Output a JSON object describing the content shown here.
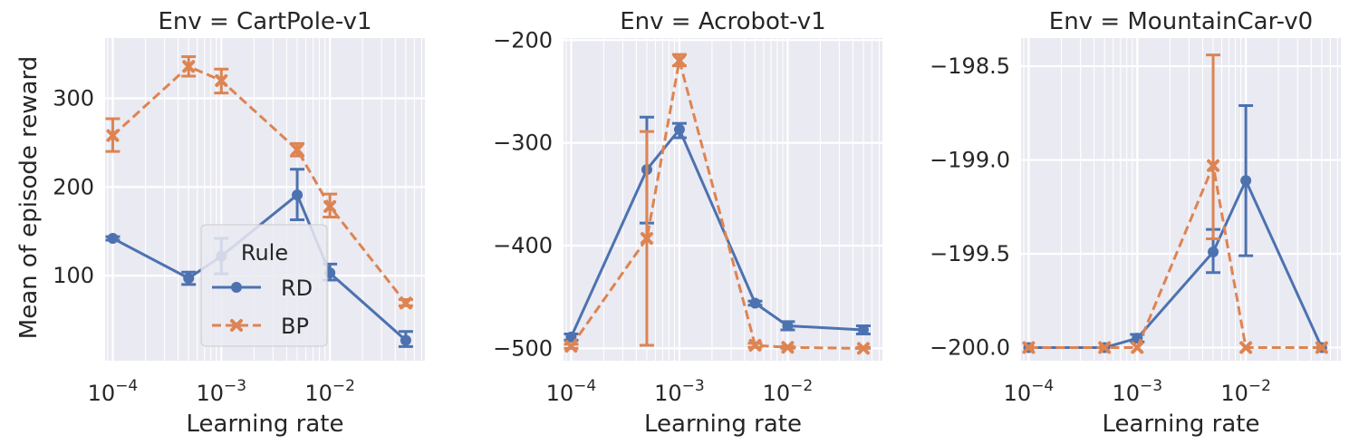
{
  "colors": {
    "RD": "#4c72b0",
    "BP": "#dd8452",
    "panel_bg": "#eaeaf2",
    "grid": "#ffffff",
    "text": "#262626"
  },
  "legend": {
    "title": "Rule",
    "placement": "lower-right",
    "panel": 0
  },
  "chart_data": [
    {
      "type": "line",
      "title": "Env = CartPole-v1",
      "xlabel": "Learning rate",
      "ylabel": "Mean of episode reward",
      "xscale": "log",
      "xlim": [
        8.5e-05,
        0.075
      ],
      "ylim": [
        4,
        368
      ],
      "yticks": [
        100,
        200,
        300
      ],
      "xticks": [
        0.0001,
        0.001,
        0.01
      ],
      "xtick_labels": [
        {
          "base": "10",
          "exp": "−4"
        },
        {
          "base": "10",
          "exp": "−3"
        },
        {
          "base": "10",
          "exp": "−2"
        }
      ],
      "grid": true,
      "series": [
        {
          "name": "RD",
          "marker": "circle",
          "dash": false,
          "x": [
            0.0001,
            0.0005,
            0.001,
            0.005,
            0.01,
            0.05
          ],
          "y": [
            142,
            97,
            122,
            191,
            103,
            27
          ],
          "err_low": [
            140,
            90,
            102,
            163,
            95,
            20
          ],
          "err_high": [
            144,
            104,
            142,
            220,
            113,
            37
          ]
        },
        {
          "name": "BP",
          "marker": "x",
          "dash": true,
          "x": [
            0.0001,
            0.0005,
            0.001,
            0.005,
            0.01,
            0.05
          ],
          "y": [
            258,
            336,
            320,
            242,
            178,
            69
          ],
          "err_low": [
            240,
            325,
            306,
            235,
            166,
            66
          ],
          "err_high": [
            277,
            347,
            333,
            249,
            192,
            73
          ]
        }
      ]
    },
    {
      "type": "line",
      "title": "Env = Acrobot-v1",
      "xlabel": "Learning rate",
      "ylabel": "",
      "xscale": "log",
      "xlim": [
        8.5e-05,
        0.075
      ],
      "ylim": [
        -512,
        -198
      ],
      "yticks": [
        -500,
        -400,
        -300,
        -200
      ],
      "xticks": [
        0.0001,
        0.001,
        0.01
      ],
      "xtick_labels": [
        {
          "base": "10",
          "exp": "−4"
        },
        {
          "base": "10",
          "exp": "−3"
        },
        {
          "base": "10",
          "exp": "−2"
        }
      ],
      "grid": true,
      "series": [
        {
          "name": "RD",
          "marker": "circle",
          "dash": false,
          "x": [
            0.0001,
            0.0005,
            0.001,
            0.005,
            0.01,
            0.05
          ],
          "y": [
            -489,
            -326,
            -287,
            -456,
            -478,
            -482
          ],
          "err_low": [
            -492,
            -378,
            -295,
            -458,
            -482,
            -486
          ],
          "err_high": [
            -486,
            -275,
            -281,
            -454,
            -474,
            -478
          ]
        },
        {
          "name": "BP",
          "marker": "x",
          "dash": true,
          "x": [
            0.0001,
            0.0005,
            0.001,
            0.005,
            0.01,
            0.05
          ],
          "y": [
            -498,
            -393,
            -220,
            -497,
            -499,
            -500
          ],
          "err_low": [
            -500,
            -497,
            -225,
            -499,
            -500,
            -500
          ],
          "err_high": [
            -496,
            -289,
            -214,
            -495,
            -498,
            -499
          ]
        }
      ]
    },
    {
      "type": "line",
      "title": "Env = MountainCar-v0",
      "xlabel": "Learning rate",
      "ylabel": "",
      "xscale": "log",
      "xlim": [
        8.5e-05,
        0.075
      ],
      "ylim": [
        -200.07,
        -198.35
      ],
      "yticks": [
        -200.0,
        -199.5,
        -199.0,
        -198.5
      ],
      "ytick_labels": [
        "−200.0",
        "−199.5",
        "−199.0",
        "−198.5"
      ],
      "xticks": [
        0.0001,
        0.001,
        0.01
      ],
      "xtick_labels": [
        {
          "base": "10",
          "exp": "−4"
        },
        {
          "base": "10",
          "exp": "−3"
        },
        {
          "base": "10",
          "exp": "−2"
        }
      ],
      "grid": true,
      "series": [
        {
          "name": "RD",
          "marker": "circle",
          "dash": false,
          "x": [
            0.0001,
            0.0005,
            0.001,
            0.005,
            0.01,
            0.05
          ],
          "y": [
            -200.0,
            -200.0,
            -199.95,
            -199.49,
            -199.11,
            -200.0
          ],
          "err_low": [
            -200.0,
            -200.0,
            -199.97,
            -199.6,
            -199.51,
            -200.0
          ],
          "err_high": [
            -200.0,
            -200.0,
            -199.93,
            -199.37,
            -198.71,
            -200.0
          ]
        },
        {
          "name": "BP",
          "marker": "x",
          "dash": true,
          "x": [
            0.0001,
            0.0005,
            0.001,
            0.005,
            0.01,
            0.05
          ],
          "y": [
            -200.0,
            -200.0,
            -200.0,
            -199.03,
            -200.0,
            -200.0
          ],
          "err_low": [
            -200.0,
            -200.0,
            -200.0,
            -199.42,
            -200.0,
            -200.0
          ],
          "err_high": [
            -200.0,
            -200.0,
            -200.0,
            -198.44,
            -200.0,
            -200.0
          ]
        }
      ]
    }
  ]
}
